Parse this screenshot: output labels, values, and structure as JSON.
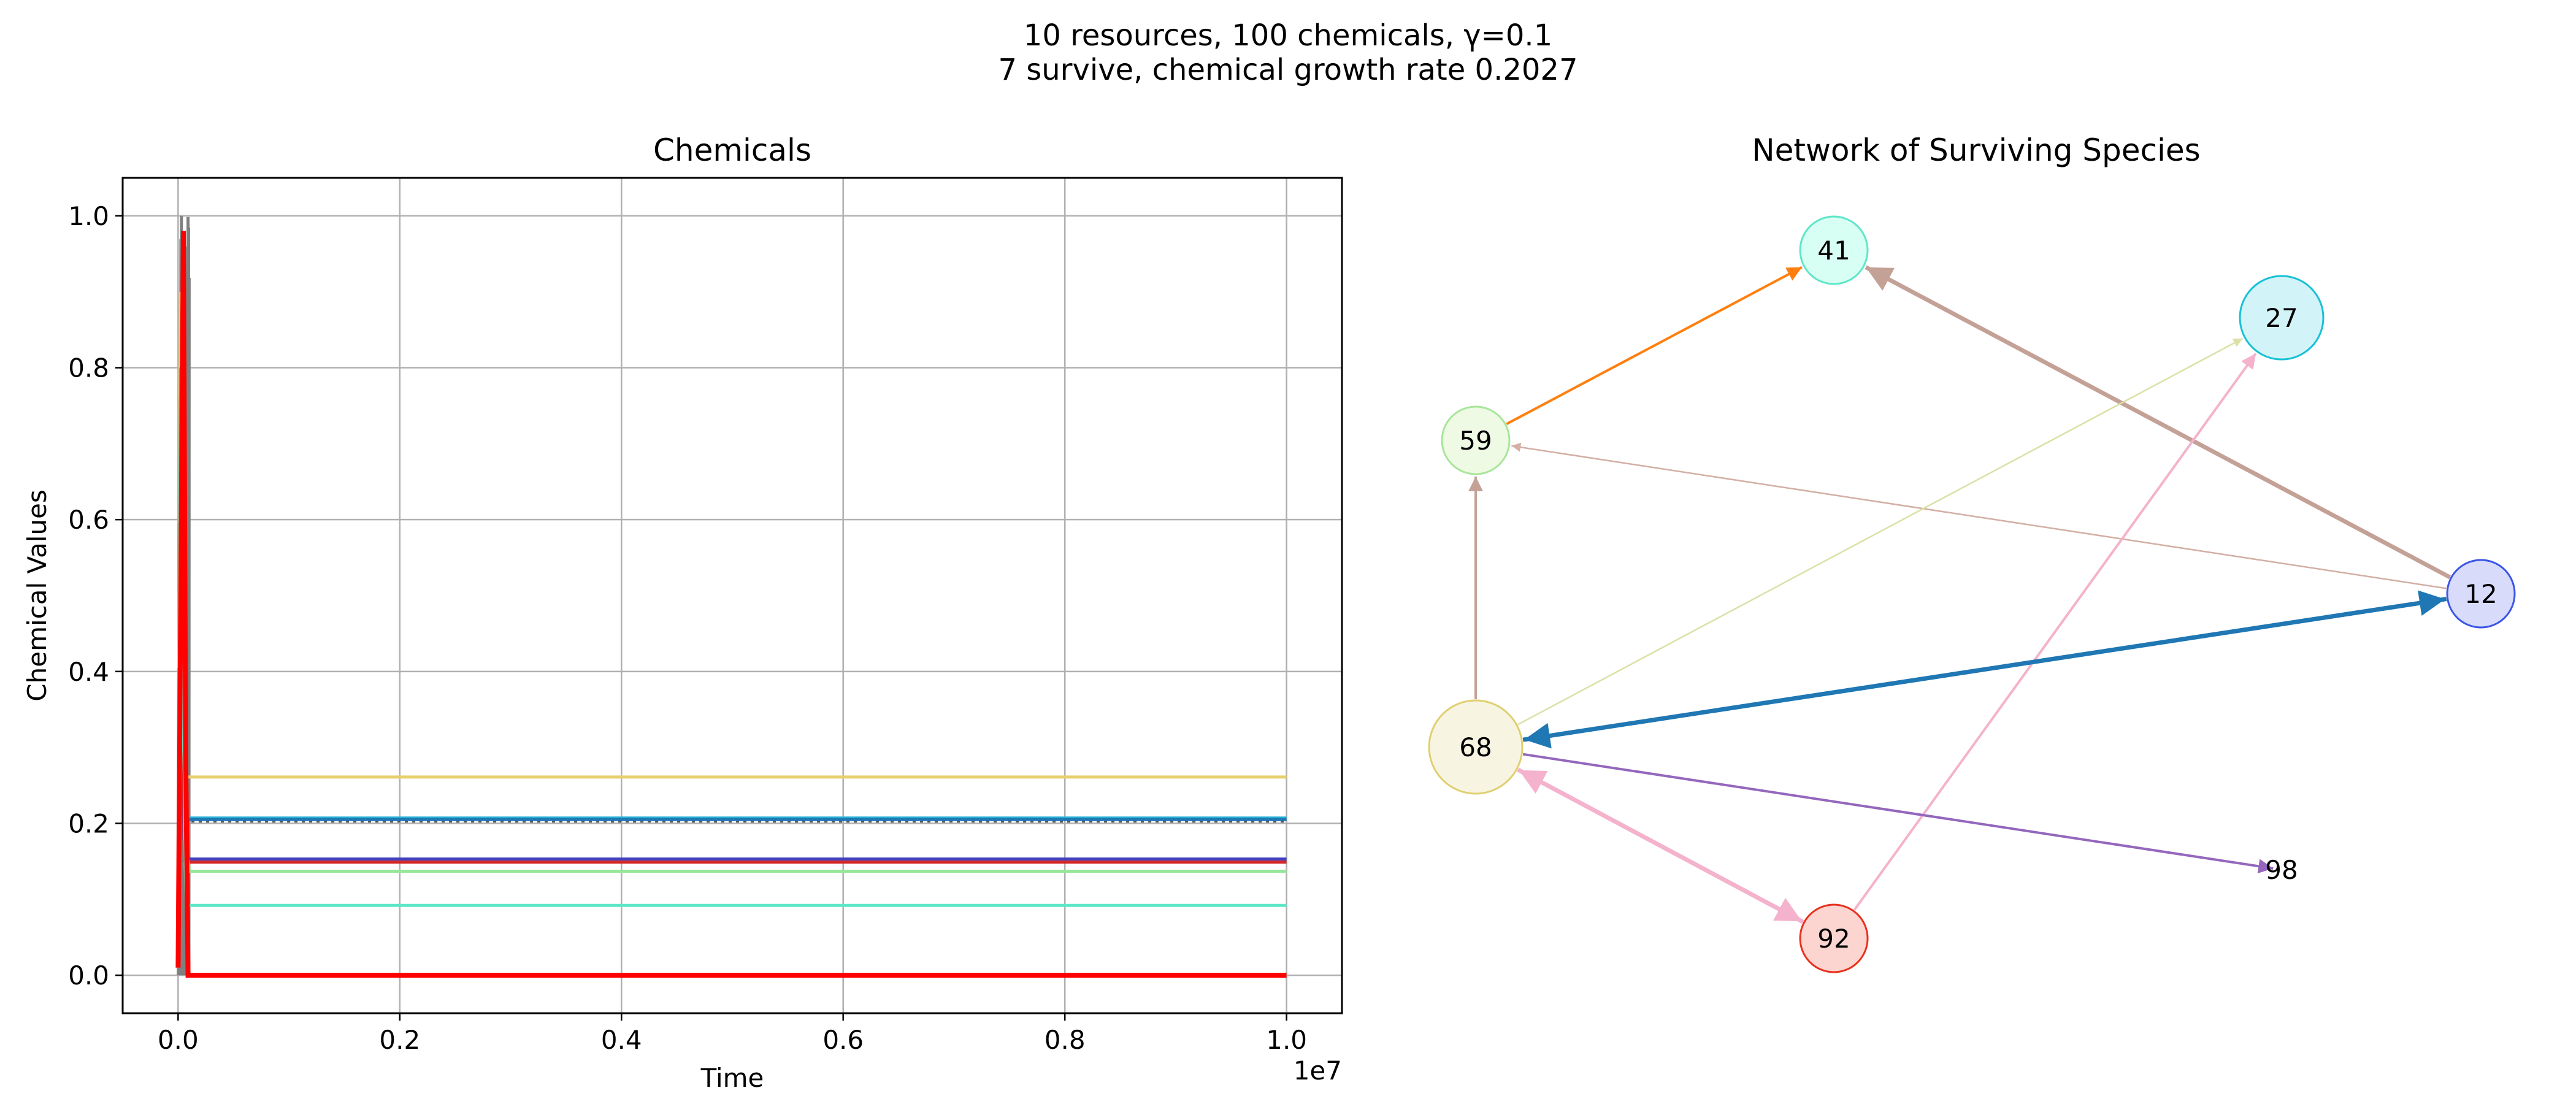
{
  "suptitle": {
    "line1": "10 resources, 100 chemicals, γ=0.1",
    "line2": "7 survive, chemical growth rate 0.2027"
  },
  "chart_data": [
    {
      "type": "line",
      "title": "Chemicals",
      "xlabel": "Time",
      "ylabel": "Chemical Values",
      "x_offset_label": "1e7",
      "xlim": [
        -0.05,
        1.05
      ],
      "ylim": [
        -0.05,
        1.05
      ],
      "xticks": [
        0.0,
        0.2,
        0.4,
        0.6,
        0.8,
        1.0
      ],
      "xtick_labels": [
        "0.0",
        "0.2",
        "0.4",
        "0.6",
        "0.8",
        "1.0"
      ],
      "yticks": [
        0.0,
        0.2,
        0.4,
        0.6,
        0.8,
        1.0
      ],
      "ytick_labels": [
        "0.0",
        "0.2",
        "0.4",
        "0.6",
        "0.8",
        "1.0"
      ],
      "grid": true,
      "steady_series": [
        {
          "color": "#e8cf6e",
          "value": 0.261,
          "peak": 0.9
        },
        {
          "color": "#2ab3d6",
          "value": 0.207,
          "peak": 0.8
        },
        {
          "color": "#1f77b4",
          "value": 0.205,
          "peak": 0.7
        },
        {
          "color": "#4040c0",
          "value": 0.153,
          "peak": 0.6
        },
        {
          "color": "#d62728",
          "value": 0.149,
          "peak": 0.5
        },
        {
          "color": "#98e69a",
          "value": 0.137,
          "peak": 0.6
        },
        {
          "color": "#5ee6c8",
          "value": 0.092,
          "peak": 0.5
        },
        {
          "color": "#ff0000",
          "value": 0.0,
          "peak": 0.98
        }
      ],
      "reference_line": {
        "value": 0.2027,
        "color": "#555555",
        "style": "dotted"
      },
      "transient_burst": {
        "color": "#808080",
        "t_start": 0.0,
        "t_end": 0.01,
        "max": 1.0
      }
    },
    {
      "type": "network",
      "title": "Network of Surviving Species",
      "nodes": [
        {
          "id": "41",
          "label": "41",
          "fill": "#d8fff3",
          "stroke": "#5ee6c8",
          "size": "small"
        },
        {
          "id": "27",
          "label": "27",
          "fill": "#d2f3f8",
          "stroke": "#19c0d6",
          "size": "medium"
        },
        {
          "id": "59",
          "label": "59",
          "fill": "#eefae3",
          "stroke": "#a8e69a",
          "size": "small"
        },
        {
          "id": "12",
          "label": "12",
          "fill": "#d8dcfa",
          "stroke": "#3b55e6",
          "size": "small"
        },
        {
          "id": "68",
          "label": "68",
          "fill": "#f7f5e2",
          "stroke": "#e0cf70",
          "size": "large"
        },
        {
          "id": "92",
          "label": "92",
          "fill": "#fcd4d0",
          "stroke": "#e8301c",
          "size": "small"
        },
        {
          "id": "98",
          "label": "98",
          "fill": "none",
          "stroke": "none",
          "size": "none"
        }
      ],
      "edges": [
        {
          "from": "59",
          "to": "41",
          "color": "#ff7f0e",
          "weight": "medium"
        },
        {
          "from": "12",
          "to": "41",
          "color": "#c4a197",
          "weight": "heavy"
        },
        {
          "from": "12",
          "to": "59",
          "color": "#d3afa5",
          "weight": "light"
        },
        {
          "from": "68",
          "to": "27",
          "color": "#dbe0a6",
          "weight": "light"
        },
        {
          "from": "92",
          "to": "27",
          "color": "#f4b2cc",
          "weight": "medium"
        },
        {
          "from": "68",
          "to": "12",
          "color": "#1f77b4",
          "weight": "heavy"
        },
        {
          "from": "12",
          "to": "68",
          "color": "#1f77b4",
          "weight": "heavy"
        },
        {
          "from": "68",
          "to": "59",
          "color": "#c4a197",
          "weight": "medium"
        },
        {
          "from": "68",
          "to": "98",
          "color": "#9467bd",
          "weight": "medium"
        },
        {
          "from": "68",
          "to": "92",
          "color": "#f4b2cc",
          "weight": "heavy"
        },
        {
          "from": "92",
          "to": "68",
          "color": "#f4b2cc",
          "weight": "heavy"
        }
      ]
    }
  ]
}
